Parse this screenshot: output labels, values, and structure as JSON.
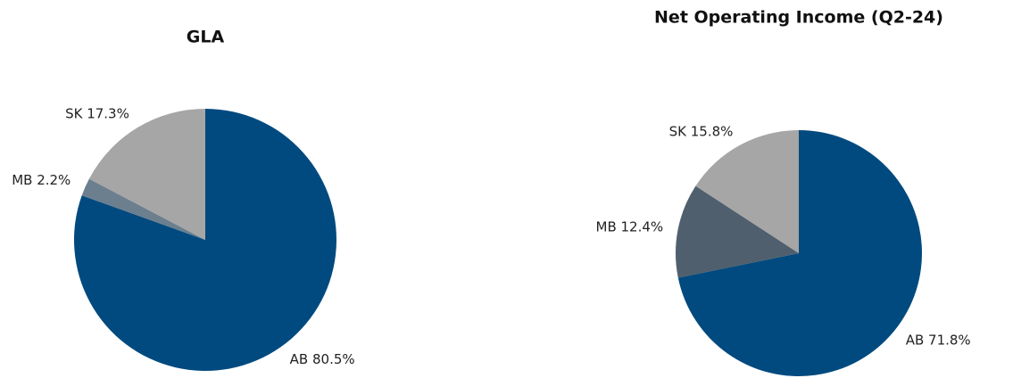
{
  "chart_data": [
    {
      "type": "pie",
      "title": "GLA",
      "categories": [
        "AB",
        "MB",
        "SK"
      ],
      "values": [
        80.5,
        2.2,
        17.3
      ],
      "value_labels": [
        "AB 80.5%",
        "MB 2.2%",
        "SK 17.3%"
      ],
      "colors": [
        "#004a7f",
        "#6c7f8e",
        "#a6a6a6"
      ]
    },
    {
      "type": "pie",
      "title": "Net Operating Income (Q2-24)",
      "categories": [
        "AB",
        "MB",
        "SK"
      ],
      "values": [
        71.8,
        12.4,
        15.8
      ],
      "value_labels": [
        "AB 71.8%",
        "MB 12.4%",
        "SK 15.8%"
      ],
      "colors": [
        "#004a7f",
        "#4f5f6d",
        "#a6a6a6"
      ]
    }
  ]
}
